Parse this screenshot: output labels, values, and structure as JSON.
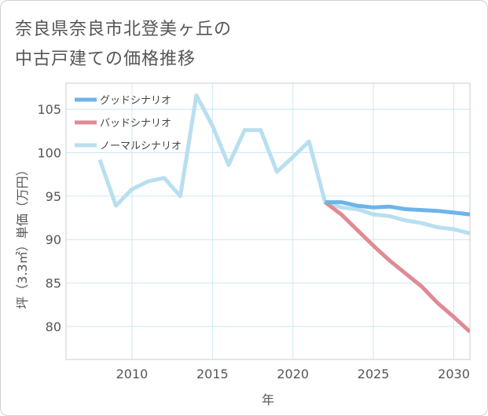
{
  "title_lines": [
    "奈良県奈良市北登美ヶ丘の",
    "中古戸建ての価格推移"
  ],
  "chart_data": {
    "type": "line",
    "title": "奈良県奈良市北登美ヶ丘の中古戸建ての価格推移",
    "xlabel": "年",
    "ylabel": "坪（3.3㎡）単価（万円）",
    "xlim": [
      2005.9,
      2031
    ],
    "ylim": [
      76.2,
      108
    ],
    "xticks": [
      2010,
      2015,
      2020,
      2025,
      2030
    ],
    "yticks": [
      80,
      85,
      90,
      95,
      100,
      105
    ],
    "grid": true,
    "legend_position": "top-left",
    "series": [
      {
        "name": "グッドシナリオ",
        "color": "#6cb4ea",
        "x": [
          2022,
          2023,
          2024,
          2025,
          2026,
          2027,
          2028,
          2029,
          2030,
          2031
        ],
        "y": [
          94.3,
          94.3,
          93.9,
          93.7,
          93.8,
          93.5,
          93.4,
          93.3,
          93.1,
          92.9
        ]
      },
      {
        "name": "バッドシナリオ",
        "color": "#df8b93",
        "x": [
          2022,
          2023,
          2024,
          2025,
          2026,
          2027,
          2028,
          2029,
          2030,
          2031
        ],
        "y": [
          94.3,
          92.9,
          91.1,
          89.3,
          87.6,
          86.1,
          84.6,
          82.7,
          81.1,
          79.4
        ]
      },
      {
        "name": "ノーマルシナリオ",
        "color": "#b8dff0",
        "x": [
          2008,
          2009,
          2010,
          2011,
          2012,
          2013,
          2014,
          2015,
          2016,
          2017,
          2018,
          2019,
          2020,
          2021,
          2022,
          2023,
          2024,
          2025,
          2026,
          2027,
          2028,
          2029,
          2030,
          2031
        ],
        "y": [
          99.2,
          93.9,
          95.8,
          96.7,
          97.1,
          95.0,
          106.6,
          103.1,
          98.6,
          102.6,
          102.6,
          97.8,
          99.5,
          101.3,
          94.3,
          93.7,
          93.5,
          92.9,
          92.7,
          92.2,
          91.9,
          91.4,
          91.2,
          90.7
        ]
      }
    ]
  }
}
